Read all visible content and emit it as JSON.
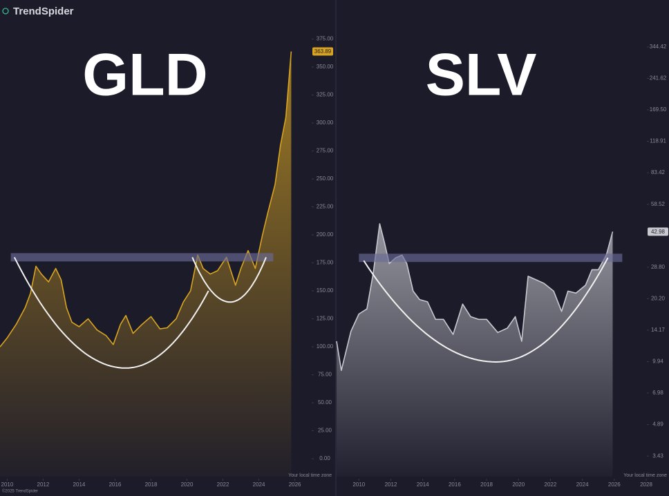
{
  "brand": "TrendSpider",
  "copyright": "©2025 TrendSpider",
  "chart_data": [
    {
      "type": "line",
      "title": "GLD",
      "x_note": "Your local time zone",
      "xlim": [
        2009.6,
        2026.9
      ],
      "xticks": [
        2010,
        2012,
        2014,
        2016,
        2018,
        2020,
        2022,
        2024,
        2026
      ],
      "ylim": [
        -16,
        379
      ],
      "log_scale": false,
      "grid": false,
      "yticks": [
        {
          "value": 375,
          "label": "375.00"
        },
        {
          "value": 350,
          "label": "350.00"
        },
        {
          "value": 325,
          "label": "325.00"
        },
        {
          "value": 300,
          "label": "300.00"
        },
        {
          "value": 275,
          "label": "275.00"
        },
        {
          "value": 250,
          "label": "250.00"
        },
        {
          "value": 225,
          "label": "225.00"
        },
        {
          "value": 200,
          "label": "200.00"
        },
        {
          "value": 175,
          "label": "175.00"
        },
        {
          "value": 150,
          "label": "150.00"
        },
        {
          "value": 125,
          "label": "125.00"
        },
        {
          "value": 100,
          "label": "100.00"
        },
        {
          "value": 75,
          "label": "75.00"
        },
        {
          "value": 50,
          "label": "50.00"
        },
        {
          "value": 25,
          "label": "25.00"
        },
        {
          "value": 0,
          "label": "0.00"
        }
      ],
      "series": [
        {
          "color": "#d9a521",
          "x": [
            2009.6,
            2010.0,
            2010.5,
            2011.0,
            2011.3,
            2011.6,
            2011.9,
            2012.3,
            2012.7,
            2013.0,
            2013.3,
            2013.6,
            2014.0,
            2014.5,
            2015.0,
            2015.5,
            2015.9,
            2016.3,
            2016.6,
            2017.0,
            2017.5,
            2018.0,
            2018.5,
            2018.9,
            2019.4,
            2019.8,
            2020.2,
            2020.6,
            2020.9,
            2021.3,
            2021.7,
            2022.2,
            2022.7,
            2023.0,
            2023.4,
            2023.8,
            2024.2,
            2024.5,
            2024.9,
            2025.2,
            2025.5,
            2025.8
          ],
          "values": [
            100,
            108,
            120,
            135,
            148,
            172,
            165,
            158,
            170,
            160,
            135,
            122,
            118,
            125,
            115,
            110,
            102,
            120,
            128,
            112,
            120,
            127,
            116,
            117,
            125,
            140,
            150,
            182,
            170,
            165,
            168,
            180,
            155,
            170,
            186,
            170,
            200,
            220,
            245,
            280,
            305,
            363.89
          ]
        }
      ],
      "resistance": {
        "value": 180,
        "x": [
          2010.2,
          2024.8
        ]
      },
      "cups": [
        {
          "x": [
            2010.4,
            2016.6,
            2021.2
          ],
          "y": [
            180,
            81,
            150
          ]
        },
        {
          "x": [
            2020.3,
            2022.4,
            2024.4
          ],
          "y": [
            180,
            140,
            180
          ]
        }
      ]
    },
    {
      "type": "line",
      "title": "SLV",
      "x_note": "Your local time zone",
      "xlim": [
        2008.6,
        2028.0
      ],
      "xticks": [
        2010,
        2012,
        2014,
        2016,
        2018,
        2020,
        2022,
        2024,
        2026,
        2028
      ],
      "ylim": [
        2.72,
        396
      ],
      "log_scale": true,
      "grid": false,
      "yticks": [
        344.42,
        241.62,
        {
          "value": 169.5,
          "label": "169.50"
        },
        118.91,
        83.42,
        58.52,
        {
          "value": 28.8,
          "label": "28.80"
        },
        {
          "value": 20.2,
          "label": "20.20"
        },
        14.17,
        9.94,
        6.98,
        4.89,
        3.43
      ],
      "series": [
        {
          "color": "#c8c8cf",
          "x": [
            2008.6,
            2008.9,
            2009.5,
            2010.0,
            2010.5,
            2010.9,
            2011.3,
            2011.6,
            2011.9,
            2012.3,
            2012.7,
            2013.0,
            2013.4,
            2013.8,
            2014.3,
            2014.8,
            2015.3,
            2015.9,
            2016.5,
            2017.0,
            2017.5,
            2018.0,
            2018.7,
            2019.3,
            2019.8,
            2020.2,
            2020.6,
            2021.1,
            2021.6,
            2022.2,
            2022.7,
            2023.1,
            2023.6,
            2024.2,
            2024.6,
            2025.0,
            2025.5,
            2025.9
          ],
          "values": [
            12.5,
            9,
            14,
            17,
            18,
            27,
            47,
            38,
            30,
            32,
            33,
            30,
            22,
            20,
            19.5,
            16,
            16,
            13.5,
            19,
            16.5,
            16,
            16,
            13.8,
            14.5,
            16.5,
            12.5,
            26,
            25,
            24,
            22,
            17.5,
            22,
            21.5,
            23.5,
            28,
            28,
            33,
            42.98
          ]
        }
      ],
      "resistance": {
        "value": 32,
        "x": [
          2010.0,
          2026.5
        ]
      },
      "cups": [
        {
          "x": [
            2010.3,
            2018.6,
            2025.6
          ],
          "y": [
            31,
            9.9,
            32
          ]
        }
      ]
    }
  ]
}
